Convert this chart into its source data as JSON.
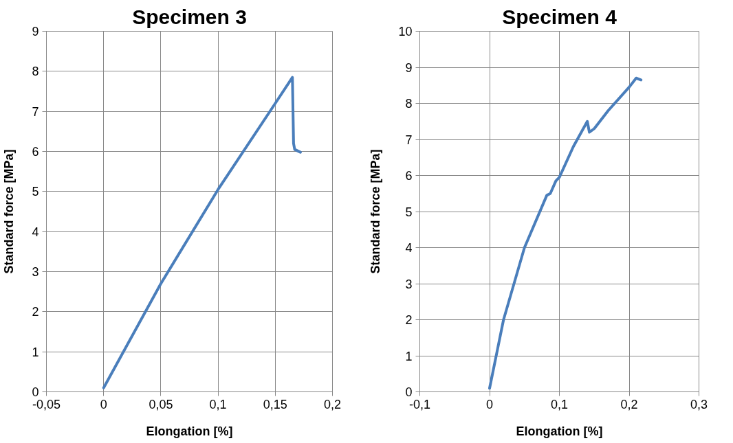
{
  "chart_data": [
    {
      "type": "line",
      "title": "Specimen 3",
      "xlabel": "Elongation [%]",
      "ylabel": "Standard force [MPa]",
      "series": [
        {
          "color": "#4a7ebb",
          "x": [
            0,
            0.05,
            0.1,
            0.15,
            0.165,
            0.166,
            0.167,
            0.172
          ],
          "values": [
            0.1,
            2.7,
            5.05,
            7.2,
            7.85,
            6.2,
            6.05,
            5.98
          ]
        }
      ],
      "xlim": [
        -0.05,
        0.2
      ],
      "ylim": [
        0,
        9
      ],
      "xticks": [
        {
          "value": -0.05,
          "label": "-0,05"
        },
        0,
        {
          "value": 0.05,
          "label": "0,05"
        },
        {
          "value": 0.1,
          "label": "0,1"
        },
        {
          "value": 0.15,
          "label": "0,15"
        },
        {
          "value": 0.2,
          "label": "0,2"
        }
      ],
      "yticks": [
        0,
        1,
        2,
        3,
        4,
        5,
        6,
        7,
        8,
        9
      ],
      "grid": true,
      "marker": "none",
      "line_style": "solid"
    },
    {
      "type": "line",
      "title": "Specimen 4",
      "xlabel": "Elongation [%]",
      "ylabel": "Standard force [MPa]",
      "series": [
        {
          "color": "#4a7ebb",
          "x": [
            0,
            0.02,
            0.05,
            0.082,
            0.087,
            0.095,
            0.1,
            0.12,
            0.14,
            0.143,
            0.15,
            0.17,
            0.2,
            0.21,
            0.217
          ],
          "values": [
            0.1,
            2.0,
            4.0,
            5.45,
            5.5,
            5.85,
            5.95,
            6.8,
            7.5,
            7.2,
            7.3,
            7.8,
            8.45,
            8.7,
            8.65
          ]
        }
      ],
      "xlim": [
        -0.1,
        0.3
      ],
      "ylim": [
        0,
        10
      ],
      "xticks": [
        {
          "value": -0.1,
          "label": "-0,1"
        },
        0,
        {
          "value": 0.1,
          "label": "0,1"
        },
        {
          "value": 0.2,
          "label": "0,2"
        },
        {
          "value": 0.3,
          "label": "0,3"
        }
      ],
      "yticks": [
        0,
        1,
        2,
        3,
        4,
        5,
        6,
        7,
        8,
        9,
        10
      ],
      "grid": true,
      "marker": "none",
      "line_style": "solid"
    }
  ]
}
